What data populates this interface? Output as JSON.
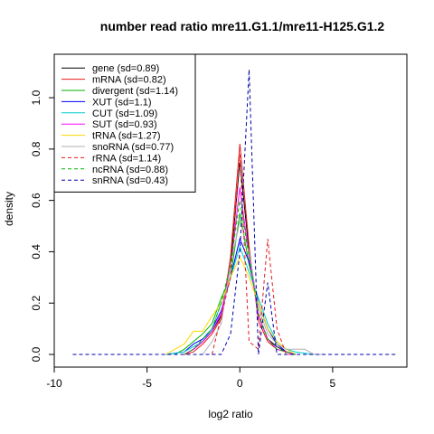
{
  "chart_data": {
    "type": "line",
    "title": "number read ratio mre11.G1.1/mre11-H125.G1.2",
    "xlabel": "log2 ratio",
    "ylabel": "density",
    "xlim": [
      -10,
      9
    ],
    "ylim": [
      0,
      1.12
    ],
    "xticks": [
      -10,
      -5,
      0,
      5
    ],
    "yticks": [
      0.0,
      0.2,
      0.4,
      0.6,
      0.8,
      1.0
    ],
    "legend_position": "top-left",
    "series": [
      {
        "name": "gene (sd=0.89)",
        "color": "#000000",
        "dash": false,
        "x": [
          -3,
          -2.5,
          -2,
          -1.5,
          -1,
          -0.5,
          0,
          0.5,
          1,
          1.5,
          2,
          2.5,
          3
        ],
        "y": [
          0.0,
          0.02,
          0.05,
          0.09,
          0.15,
          0.35,
          0.75,
          0.4,
          0.15,
          0.06,
          0.03,
          0.01,
          0.0
        ]
      },
      {
        "name": "mRNA (sd=0.82)",
        "color": "#e41a1c",
        "dash": false,
        "x": [
          -3,
          -2.5,
          -2,
          -1.5,
          -1,
          -0.5,
          0,
          0.5,
          1,
          1.5,
          2,
          2.5,
          3
        ],
        "y": [
          0.0,
          0.01,
          0.04,
          0.08,
          0.14,
          0.38,
          0.82,
          0.42,
          0.13,
          0.05,
          0.02,
          0.01,
          0.0
        ]
      },
      {
        "name": "divergent (sd=1.14)",
        "color": "#00b200",
        "dash": false,
        "x": [
          -3.5,
          -3,
          -2.5,
          -2,
          -1.5,
          -1,
          -0.5,
          0,
          0.5,
          1,
          1.5,
          2,
          2.5,
          3
        ],
        "y": [
          0.0,
          0.02,
          0.05,
          0.08,
          0.12,
          0.22,
          0.3,
          0.55,
          0.35,
          0.2,
          0.1,
          0.04,
          0.01,
          0.0
        ]
      },
      {
        "name": "XUT (sd=1.1)",
        "color": "#0000ff",
        "dash": false,
        "x": [
          -4,
          -3,
          -2.5,
          -2,
          -1.5,
          -1,
          -0.5,
          0,
          0.5,
          1,
          1.5,
          2,
          2.5,
          3
        ],
        "y": [
          0.0,
          0.01,
          0.04,
          0.06,
          0.1,
          0.17,
          0.3,
          0.45,
          0.36,
          0.2,
          0.1,
          0.04,
          0.01,
          0.0
        ]
      },
      {
        "name": "CUT (sd=1.09)",
        "color": "#00cccc",
        "dash": false,
        "x": [
          -4,
          -3,
          -2.5,
          -2,
          -1.5,
          -1,
          -0.5,
          0,
          0.5,
          1,
          1.5,
          2,
          2.5,
          3,
          4
        ],
        "y": [
          0.0,
          0.01,
          0.03,
          0.05,
          0.1,
          0.2,
          0.3,
          0.42,
          0.32,
          0.22,
          0.12,
          0.05,
          0.02,
          0.01,
          0.0
        ]
      },
      {
        "name": "SUT (sd=0.93)",
        "color": "#ff00ff",
        "dash": false,
        "x": [
          -3,
          -2.5,
          -2,
          -1.5,
          -1,
          -0.5,
          0,
          0.5,
          1,
          1.5,
          2,
          2.5,
          3
        ],
        "y": [
          0.0,
          0.02,
          0.05,
          0.09,
          0.16,
          0.34,
          0.65,
          0.38,
          0.15,
          0.06,
          0.02,
          0.01,
          0.0
        ]
      },
      {
        "name": "tRNA (sd=1.27)",
        "color": "#ffd700",
        "dash": false,
        "x": [
          -4,
          -3.5,
          -3,
          -2.5,
          -2,
          -1.5,
          -1,
          -0.5,
          0,
          0.5,
          1,
          1.5,
          2,
          2.5,
          3
        ],
        "y": [
          0.0,
          0.02,
          0.04,
          0.09,
          0.09,
          0.15,
          0.2,
          0.3,
          0.38,
          0.3,
          0.2,
          0.1,
          0.05,
          0.02,
          0.0
        ]
      },
      {
        "name": "snoRNA (sd=0.77)",
        "color": "#b0b0b0",
        "dash": false,
        "x": [
          -2,
          -1.5,
          -1,
          -0.5,
          0,
          0.5,
          1,
          1.5,
          2,
          2.5,
          3,
          3.5,
          4,
          4.5
        ],
        "y": [
          0.0,
          0.05,
          0.12,
          0.35,
          0.52,
          0.4,
          0.18,
          0.08,
          0.04,
          0.02,
          0.02,
          0.02,
          0.0,
          0.0
        ]
      },
      {
        "name": "rRNA (sd=1.14)",
        "color": "#e41a1c",
        "dash": true,
        "x": [
          -1.5,
          -1,
          -0.5,
          0,
          0.5,
          1,
          1.5,
          2,
          2.5,
          3
        ],
        "y": [
          0.0,
          0.15,
          0.3,
          0.78,
          0.05,
          0.02,
          0.45,
          0.1,
          0.0,
          0.0
        ]
      },
      {
        "name": "ncRNA (sd=0.88)",
        "color": "#00b200",
        "dash": true,
        "x": [
          -3,
          -2.5,
          -2,
          -1.5,
          -1,
          -0.5,
          0,
          0.5,
          1,
          1.5,
          2,
          2.5,
          3
        ],
        "y": [
          0.0,
          0.02,
          0.06,
          0.1,
          0.2,
          0.35,
          0.6,
          0.38,
          0.16,
          0.06,
          0.02,
          0.01,
          0.0
        ]
      },
      {
        "name": "snRNA (sd=0.43)",
        "color": "#0000aa",
        "dash": true,
        "x": [
          -9,
          -1,
          -0.5,
          0,
          0.5,
          1,
          1.5,
          2,
          8.5
        ],
        "y": [
          0.0,
          0.0,
          0.08,
          0.4,
          1.11,
          0.0,
          0.28,
          0.0,
          0.0
        ]
      }
    ]
  }
}
